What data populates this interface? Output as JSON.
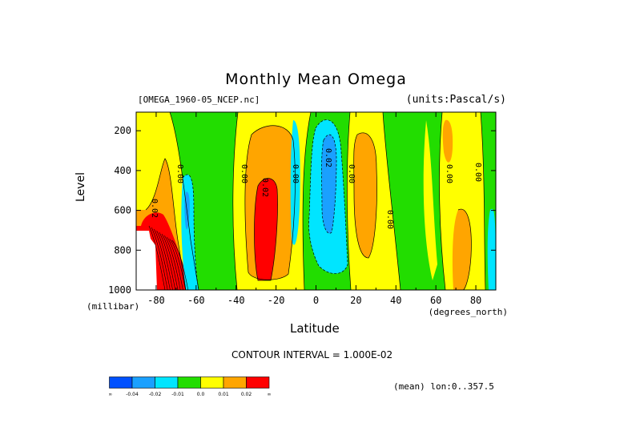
{
  "title": "Monthly Mean Omega",
  "subtitle_left": "[OMEGA_1960-05_NCEP.nc]",
  "subtitle_right": "(units:Pascal/s)",
  "ylabel": "Level",
  "yunits": "(millibar)",
  "xlabel": "Latitude",
  "xunits": "(degrees_north)",
  "contour_interval": "CONTOUR INTERVAL = 1.000E-02",
  "mean_lon": "(mean) lon:0..357.5",
  "colors": {
    "deep_blue": "#0050ff",
    "blue": "#1aa0ff",
    "cyan": "#00e5ff",
    "green": "#22dd00",
    "yellow": "#ffff00",
    "orange": "#ffa500",
    "red": "#ff0000"
  },
  "legend": {
    "labels": [
      "-∞",
      "-0.04",
      "-0.02",
      "-0.01",
      "0.0",
      "0.01",
      "0.02",
      "∞"
    ]
  },
  "chart_data": {
    "type": "contour",
    "x_ticks": [
      -80,
      -60,
      -40,
      -20,
      0,
      20,
      40,
      60,
      80
    ],
    "y_ticks": [
      200,
      400,
      600,
      800,
      1000
    ],
    "xlim": [
      -90,
      90
    ],
    "ylim": [
      1000,
      100
    ],
    "contour_labels": [
      "0.02",
      "0.00",
      "0.00",
      "0.02",
      "0.00",
      "0.02",
      "0.00",
      "0.00",
      "0.00",
      "0.00"
    ],
    "bands": [
      {
        "lat_min": -90,
        "lat_max": -72,
        "sign": "positive",
        "peak": 0.03
      },
      {
        "lat_min": -68,
        "lat_max": -60,
        "sign": "negative",
        "peak": -0.02
      },
      {
        "lat_min": -34,
        "lat_max": -18,
        "sign": "positive",
        "peak": 0.03
      },
      {
        "lat_min": 0,
        "lat_max": 14,
        "sign": "negative",
        "peak": -0.03
      },
      {
        "lat_min": 18,
        "lat_max": 30,
        "sign": "positive",
        "peak": 0.01
      },
      {
        "lat_min": 66,
        "lat_max": 78,
        "sign": "positive",
        "peak": 0.01
      }
    ]
  }
}
